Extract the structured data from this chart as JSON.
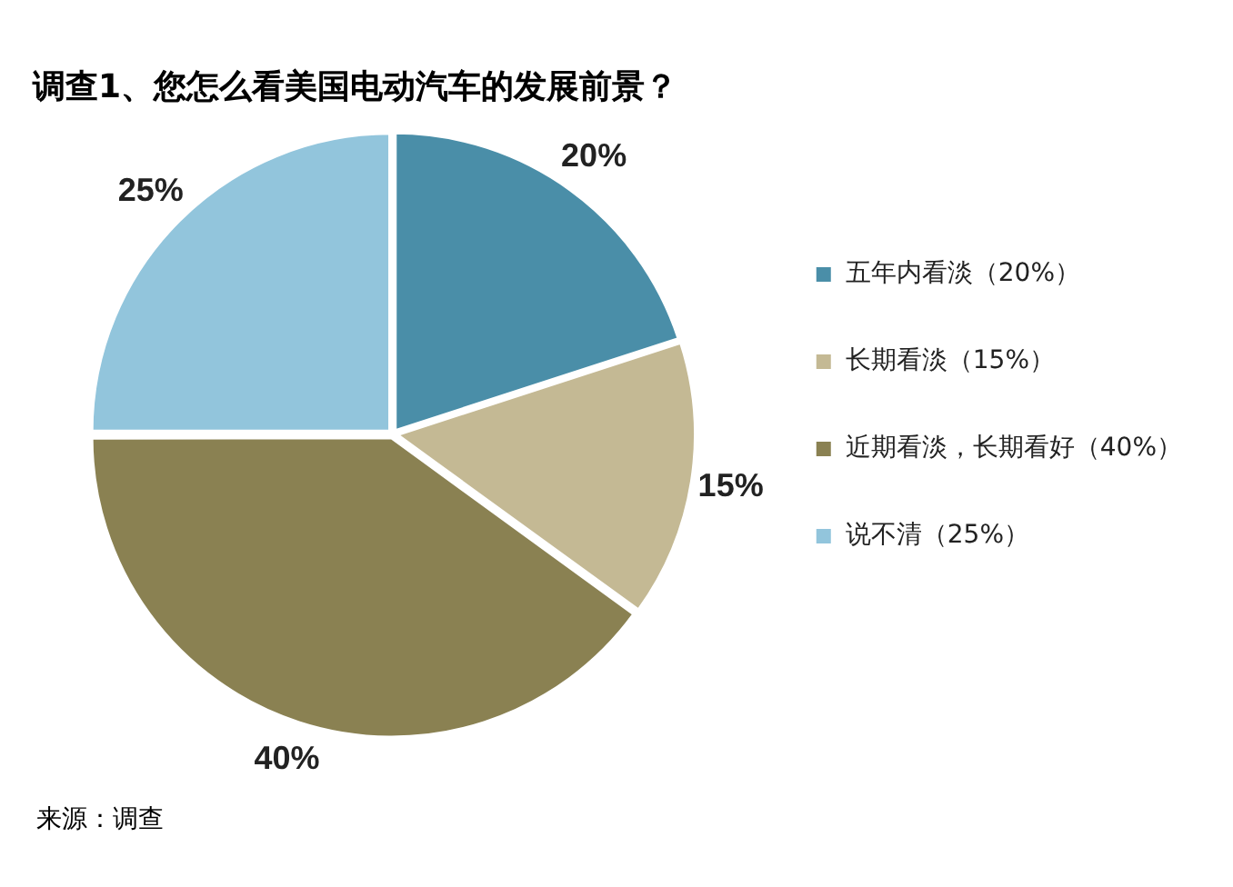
{
  "chart_data": {
    "type": "pie",
    "title": "调查1、您怎么看美国电动汽车的发展前景？",
    "categories": [
      "五年内看淡（20%）",
      "长期看淡（15%）",
      "近期看淡，长期看好（40%）",
      "说不清（25%）"
    ],
    "values": [
      20,
      15,
      40,
      25
    ],
    "colors": [
      "#4a8ea8",
      "#c4b994",
      "#8a8152",
      "#92c5dc"
    ],
    "value_labels": [
      "20%",
      "15%",
      "40%",
      "25%"
    ],
    "legend": "right",
    "annotations": [
      "来源：调查"
    ]
  }
}
